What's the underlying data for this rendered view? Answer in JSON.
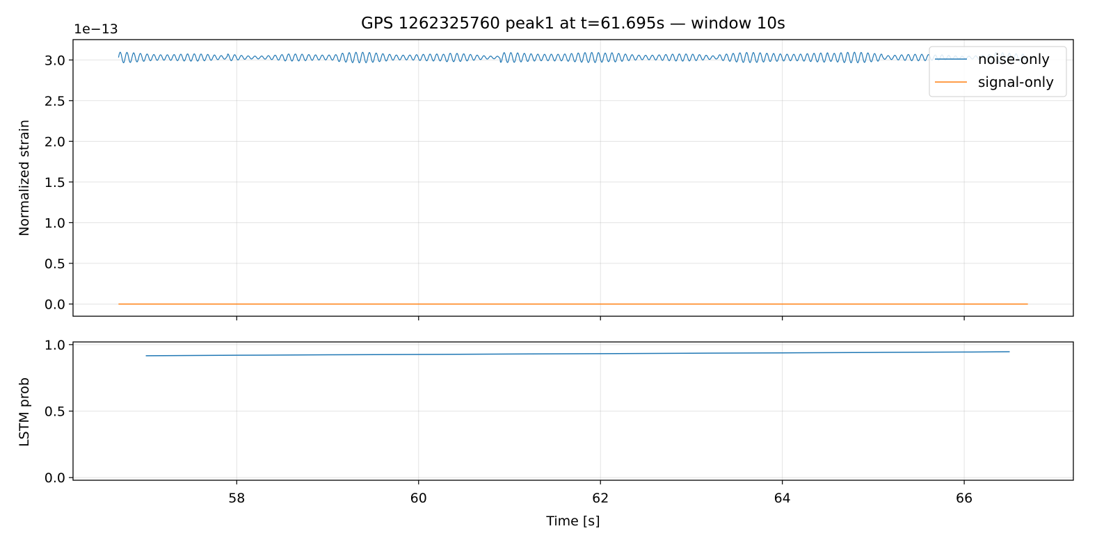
{
  "chart_data": [
    {
      "type": "line",
      "title": "GPS 1262325760 peak1 at t=61.695s — window 10s",
      "ylabel": "Normalized strain",
      "xlabel": "",
      "offset_label": "1e−13",
      "xlim": [
        56.2,
        67.2
      ],
      "ylim": [
        -0.15,
        3.25
      ],
      "xticks": [
        58,
        60,
        62,
        64,
        66
      ],
      "yticks": [
        0.0,
        0.5,
        1.0,
        1.5,
        2.0,
        2.5,
        3.0
      ],
      "ytick_labels": [
        "0.0",
        "0.5",
        "1.0",
        "1.5",
        "2.0",
        "2.5",
        "3.0"
      ],
      "grid": true,
      "legend": "top-right",
      "series": [
        {
          "name": "noise-only",
          "color": "#1f77b4",
          "x_range": [
            56.7,
            66.7
          ],
          "baseline": 3.03,
          "amplitude_min": 0.015,
          "amplitude_max": 0.065,
          "cycles_per_second": 13.5
        },
        {
          "name": "signal-only",
          "color": "#ff7f0e",
          "x": [
            56.7,
            66.7
          ],
          "y": [
            0.0,
            0.0
          ]
        }
      ]
    },
    {
      "type": "line",
      "title": "",
      "ylabel": "LSTM prob",
      "xlabel": "Time [s]",
      "xlim": [
        56.2,
        67.2
      ],
      "ylim": [
        -0.02,
        1.02
      ],
      "xticks": [
        58,
        60,
        62,
        64,
        66
      ],
      "xtick_labels": [
        "58",
        "60",
        "62",
        "64",
        "66"
      ],
      "yticks": [
        0.0,
        0.5,
        1.0
      ],
      "ytick_labels": [
        "0.0",
        "0.5",
        "1.0"
      ],
      "grid": true,
      "series": [
        {
          "color": "#1f77b4",
          "x": [
            57.0,
            58.0,
            59.0,
            60.0,
            61.0,
            62.0,
            63.0,
            64.0,
            65.0,
            66.0,
            66.5
          ],
          "y": [
            0.916,
            0.92,
            0.923,
            0.926,
            0.929,
            0.932,
            0.935,
            0.938,
            0.941,
            0.944,
            0.946
          ]
        }
      ]
    }
  ]
}
